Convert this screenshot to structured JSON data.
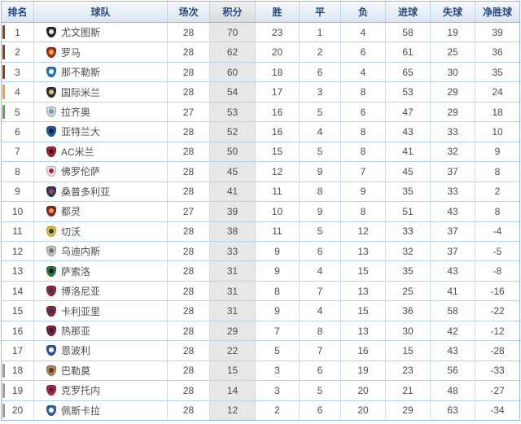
{
  "table": {
    "columns": [
      "排名",
      "球队",
      "场次",
      "积分",
      "胜",
      "平",
      "负",
      "进球",
      "失球",
      "净胜球"
    ],
    "rows": [
      {
        "rank": "1",
        "team": "尤文图斯",
        "played": "28",
        "points": "70",
        "won": "23",
        "drawn": "1",
        "lost": "4",
        "gf": "58",
        "ga": "19",
        "gd": "39",
        "zone": "ucl",
        "logo": {
          "primary": "#2b2b2b",
          "secondary": "#e8e8e8"
        }
      },
      {
        "rank": "2",
        "team": "罗马",
        "played": "28",
        "points": "62",
        "won": "20",
        "drawn": "2",
        "lost": "6",
        "gf": "61",
        "ga": "25",
        "gd": "36",
        "zone": "ucl",
        "logo": {
          "primary": "#a62c26",
          "secondary": "#f2b13a"
        }
      },
      {
        "rank": "3",
        "team": "那不勒斯",
        "played": "28",
        "points": "60",
        "won": "18",
        "drawn": "6",
        "lost": "4",
        "gf": "65",
        "ga": "30",
        "gd": "35",
        "zone": "ucl",
        "logo": {
          "primary": "#2277cc",
          "secondary": "#ffffff"
        }
      },
      {
        "rank": "4",
        "team": "国际米兰",
        "played": "28",
        "points": "54",
        "won": "17",
        "drawn": "3",
        "lost": "8",
        "gf": "53",
        "ga": "29",
        "gd": "24",
        "zone": "ucl_q",
        "logo": {
          "primary": "#333333",
          "secondary": "#d9c27a"
        }
      },
      {
        "rank": "5",
        "team": "拉齐奥",
        "played": "27",
        "points": "53",
        "won": "16",
        "drawn": "5",
        "lost": "6",
        "gf": "47",
        "ga": "29",
        "gd": "18",
        "zone": "uel",
        "logo": {
          "primary": "#cdd9e5",
          "secondary": "#7e9ab5"
        }
      },
      {
        "rank": "6",
        "team": "亚特兰大",
        "played": "28",
        "points": "52",
        "won": "16",
        "drawn": "4",
        "lost": "8",
        "gf": "43",
        "ga": "33",
        "gd": "10",
        "zone": "",
        "logo": {
          "primary": "#1f5fa6",
          "secondary": "#222222"
        }
      },
      {
        "rank": "7",
        "team": "AC米兰",
        "played": "28",
        "points": "50",
        "won": "15",
        "drawn": "5",
        "lost": "8",
        "gf": "41",
        "ga": "32",
        "gd": "9",
        "zone": "",
        "logo": {
          "primary": "#b22230",
          "secondary": "#222222"
        }
      },
      {
        "rank": "8",
        "team": "佛罗伦萨",
        "played": "28",
        "points": "45",
        "won": "12",
        "drawn": "9",
        "lost": "7",
        "gf": "45",
        "ga": "37",
        "gd": "8",
        "zone": "",
        "logo": {
          "primary": "#ece7dd",
          "secondary": "#a12347"
        }
      },
      {
        "rank": "9",
        "team": "桑普多利亚",
        "played": "28",
        "points": "41",
        "won": "11",
        "drawn": "8",
        "lost": "9",
        "gf": "35",
        "ga": "33",
        "gd": "2",
        "zone": "",
        "logo": {
          "primary": "#20406e",
          "secondary": "#cc3333"
        }
      },
      {
        "rank": "10",
        "team": "都灵",
        "played": "27",
        "points": "39",
        "won": "10",
        "drawn": "9",
        "lost": "8",
        "gf": "51",
        "ga": "43",
        "gd": "8",
        "zone": "",
        "logo": {
          "primary": "#8a2525",
          "secondary": "#d3a13f"
        }
      },
      {
        "rank": "11",
        "team": "切沃",
        "played": "28",
        "points": "38",
        "won": "11",
        "drawn": "5",
        "lost": "12",
        "gf": "33",
        "ga": "37",
        "gd": "-4",
        "zone": "",
        "logo": {
          "primary": "#e5c63a",
          "secondary": "#2b3a63"
        }
      },
      {
        "rank": "12",
        "team": "乌迪内斯",
        "played": "28",
        "points": "33",
        "won": "9",
        "drawn": "6",
        "lost": "13",
        "gf": "32",
        "ga": "37",
        "gd": "-5",
        "zone": "",
        "logo": {
          "primary": "#c3c7cb",
          "secondary": "#707478"
        }
      },
      {
        "rank": "13",
        "team": "萨索洛",
        "played": "28",
        "points": "31",
        "won": "9",
        "drawn": "4",
        "lost": "15",
        "gf": "35",
        "ga": "43",
        "gd": "-8",
        "zone": "",
        "logo": {
          "primary": "#2a7d3f",
          "secondary": "#1c1c1c"
        }
      },
      {
        "rank": "14",
        "team": "博洛尼亚",
        "played": "28",
        "points": "31",
        "won": "8",
        "drawn": "7",
        "lost": "13",
        "gf": "25",
        "ga": "41",
        "gd": "-16",
        "zone": "",
        "logo": {
          "primary": "#a32334",
          "secondary": "#1f3a6e"
        }
      },
      {
        "rank": "15",
        "team": "卡利亚里",
        "played": "28",
        "points": "31",
        "won": "9",
        "drawn": "4",
        "lost": "15",
        "gf": "36",
        "ga": "58",
        "gd": "-22",
        "zone": "",
        "logo": {
          "primary": "#8e2639",
          "secondary": "#20386b"
        }
      },
      {
        "rank": "16",
        "team": "热那亚",
        "played": "28",
        "points": "29",
        "won": "7",
        "drawn": "8",
        "lost": "13",
        "gf": "30",
        "ga": "42",
        "gd": "-12",
        "zone": "",
        "logo": {
          "primary": "#8e2030",
          "secondary": "#1c2e57"
        }
      },
      {
        "rank": "17",
        "team": "恩波利",
        "played": "28",
        "points": "22",
        "won": "5",
        "drawn": "7",
        "lost": "16",
        "gf": "15",
        "ga": "43",
        "gd": "-28",
        "zone": "",
        "logo": {
          "primary": "#2a59a8",
          "secondary": "#ffffff"
        }
      },
      {
        "rank": "18",
        "team": "巴勒莫",
        "played": "28",
        "points": "15",
        "won": "3",
        "drawn": "6",
        "lost": "19",
        "gf": "23",
        "ga": "56",
        "gd": "-33",
        "zone": "releg",
        "logo": {
          "primary": "#b08d4d",
          "secondary": "#63303e"
        }
      },
      {
        "rank": "19",
        "team": "克罗托内",
        "played": "28",
        "points": "14",
        "won": "3",
        "drawn": "5",
        "lost": "20",
        "gf": "21",
        "ga": "48",
        "gd": "-27",
        "zone": "releg",
        "logo": {
          "primary": "#c2252f",
          "secondary": "#253066"
        }
      },
      {
        "rank": "20",
        "team": "佩斯卡拉",
        "played": "28",
        "points": "12",
        "won": "2",
        "drawn": "6",
        "lost": "20",
        "gf": "29",
        "ga": "63",
        "gd": "-34",
        "zone": "releg",
        "logo": {
          "primary": "#2f62ab",
          "secondary": "#ffffff"
        }
      }
    ]
  },
  "zone_colors": {
    "ucl": "#8e3c1d",
    "ucl_q": "#f09a38",
    "uel": "#43b14b",
    "releg": "#9b9b9b"
  },
  "colors": {
    "header_text": "#26497e",
    "header_bg": "#dbe5f1",
    "grid_border": "#b7d3ec",
    "points_column_bg": "#e7e7e7",
    "cell_text": "#4d4d4d"
  }
}
